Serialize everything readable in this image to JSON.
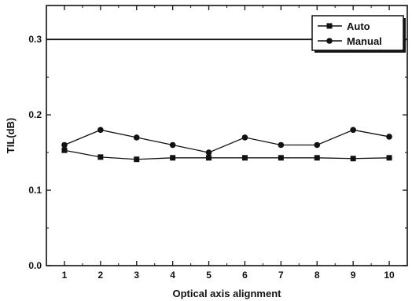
{
  "chart_data": {
    "type": "line",
    "xlabel": "Optical axis alignment",
    "ylabel": "TIL(dB)",
    "x": [
      1,
      2,
      3,
      4,
      5,
      6,
      7,
      8,
      9,
      10
    ],
    "xlim": [
      0.5,
      10.5
    ],
    "ylim": [
      0.0,
      0.345
    ],
    "yticks": [
      0.0,
      0.1,
      0.2,
      0.3
    ],
    "ytick_labels": [
      "0.0",
      "0.1",
      "0.2",
      "0.3"
    ],
    "xtick_labels": [
      "1",
      "2",
      "3",
      "4",
      "5",
      "6",
      "7",
      "8",
      "9",
      "10"
    ],
    "series": [
      {
        "name": "Auto",
        "marker": "square",
        "color": "#111111",
        "values": [
          0.153,
          0.144,
          0.141,
          0.143,
          0.143,
          0.143,
          0.143,
          0.143,
          0.142,
          0.143
        ]
      },
      {
        "name": "Manual",
        "marker": "circle",
        "color": "#111111",
        "values": [
          0.16,
          0.18,
          0.17,
          0.16,
          0.15,
          0.17,
          0.16,
          0.16,
          0.18,
          0.171
        ]
      }
    ],
    "reference_lines": [
      {
        "y": 0.3
      }
    ],
    "legend": "top-right",
    "grid": false
  }
}
